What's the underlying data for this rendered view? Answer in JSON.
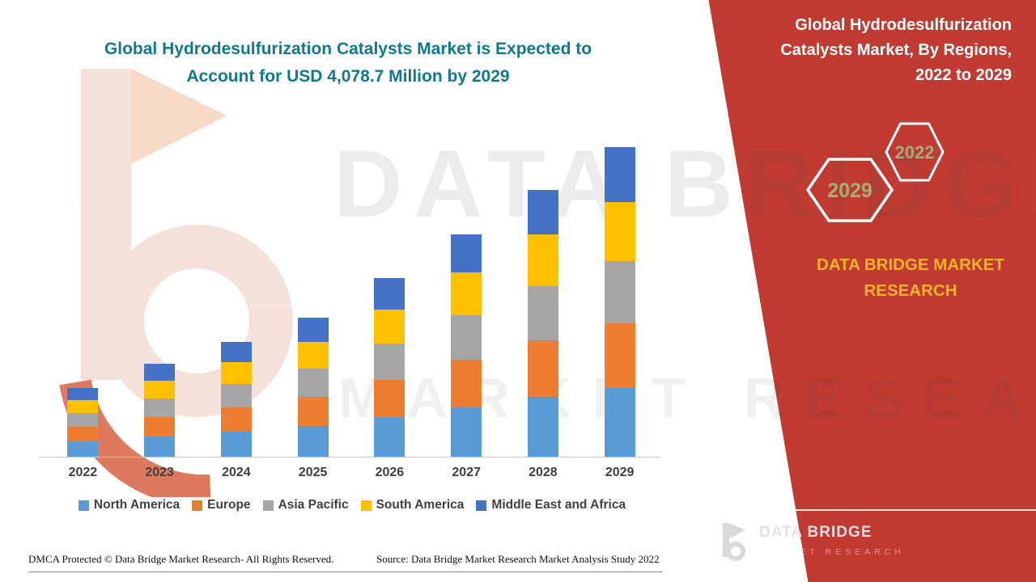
{
  "page": {
    "accent_red": "#c13b32",
    "accent_teal": "#10798b",
    "accent_yellow": "#f0b32a"
  },
  "header": {
    "title_line1": "Global Hydrodesulfurization Catalysts Market is Expected to",
    "title_line2": "Account for USD 4,078.7 Million by 2029"
  },
  "side_panel": {
    "title": "Global Hydrodesulfurization Catalysts Market, By Regions, 2022 to 2029",
    "hexagon_front": "2029",
    "hexagon_back": "2022",
    "brand_heading": "DATA BRIDGE MARKET RESEARCH",
    "logo_brand": "DATA BRIDGE",
    "logo_tagline": "MARKET RESEARCH"
  },
  "watermark": {
    "line1": "DATA BRIDGE",
    "line2": "MARKET RESEARCH"
  },
  "footer": {
    "dmca": "DMCA Protected © Data Bridge Market Research- All Rights Reserved.",
    "source": "Source: Data Bridge Market Research Market Analysis Study 2022"
  },
  "chart_data": {
    "type": "bar",
    "stacked": true,
    "title": "Global Hydrodesulfurization Catalysts Market is Expected to Account for USD 4,078.7 Million by 2029",
    "unit": "USD Million",
    "categories": [
      "2022",
      "2023",
      "2024",
      "2025",
      "2026",
      "2027",
      "2028",
      "2029"
    ],
    "series": [
      {
        "name": "North America",
        "color": "#5b9bd5",
        "values": [
          200,
          270,
          335,
          405,
          520,
          655,
          790,
          905
        ]
      },
      {
        "name": "Europe",
        "color": "#ed7d31",
        "values": [
          190,
          255,
          315,
          385,
          495,
          620,
          745,
          855
        ]
      },
      {
        "name": "Asia Pacific",
        "color": "#a5a5a5",
        "values": [
          185,
          245,
          305,
          370,
          475,
          595,
          715,
          820
        ]
      },
      {
        "name": "South America",
        "color": "#ffc000",
        "values": [
          175,
          235,
          290,
          350,
          450,
          565,
          680,
          780
        ]
      },
      {
        "name": "Middle East and Africa",
        "color": "#4472c4",
        "values": [
          160,
          220,
          265,
          320,
          410,
          500,
          590,
          718.7
        ]
      }
    ],
    "totals": [
      910,
      1225,
      1510,
      1830,
      2350,
      2935,
      3520,
      4078.7
    ],
    "ylim": [
      0,
      4400
    ],
    "legend_position": "bottom",
    "grid": false,
    "xlabel": "",
    "ylabel": ""
  }
}
